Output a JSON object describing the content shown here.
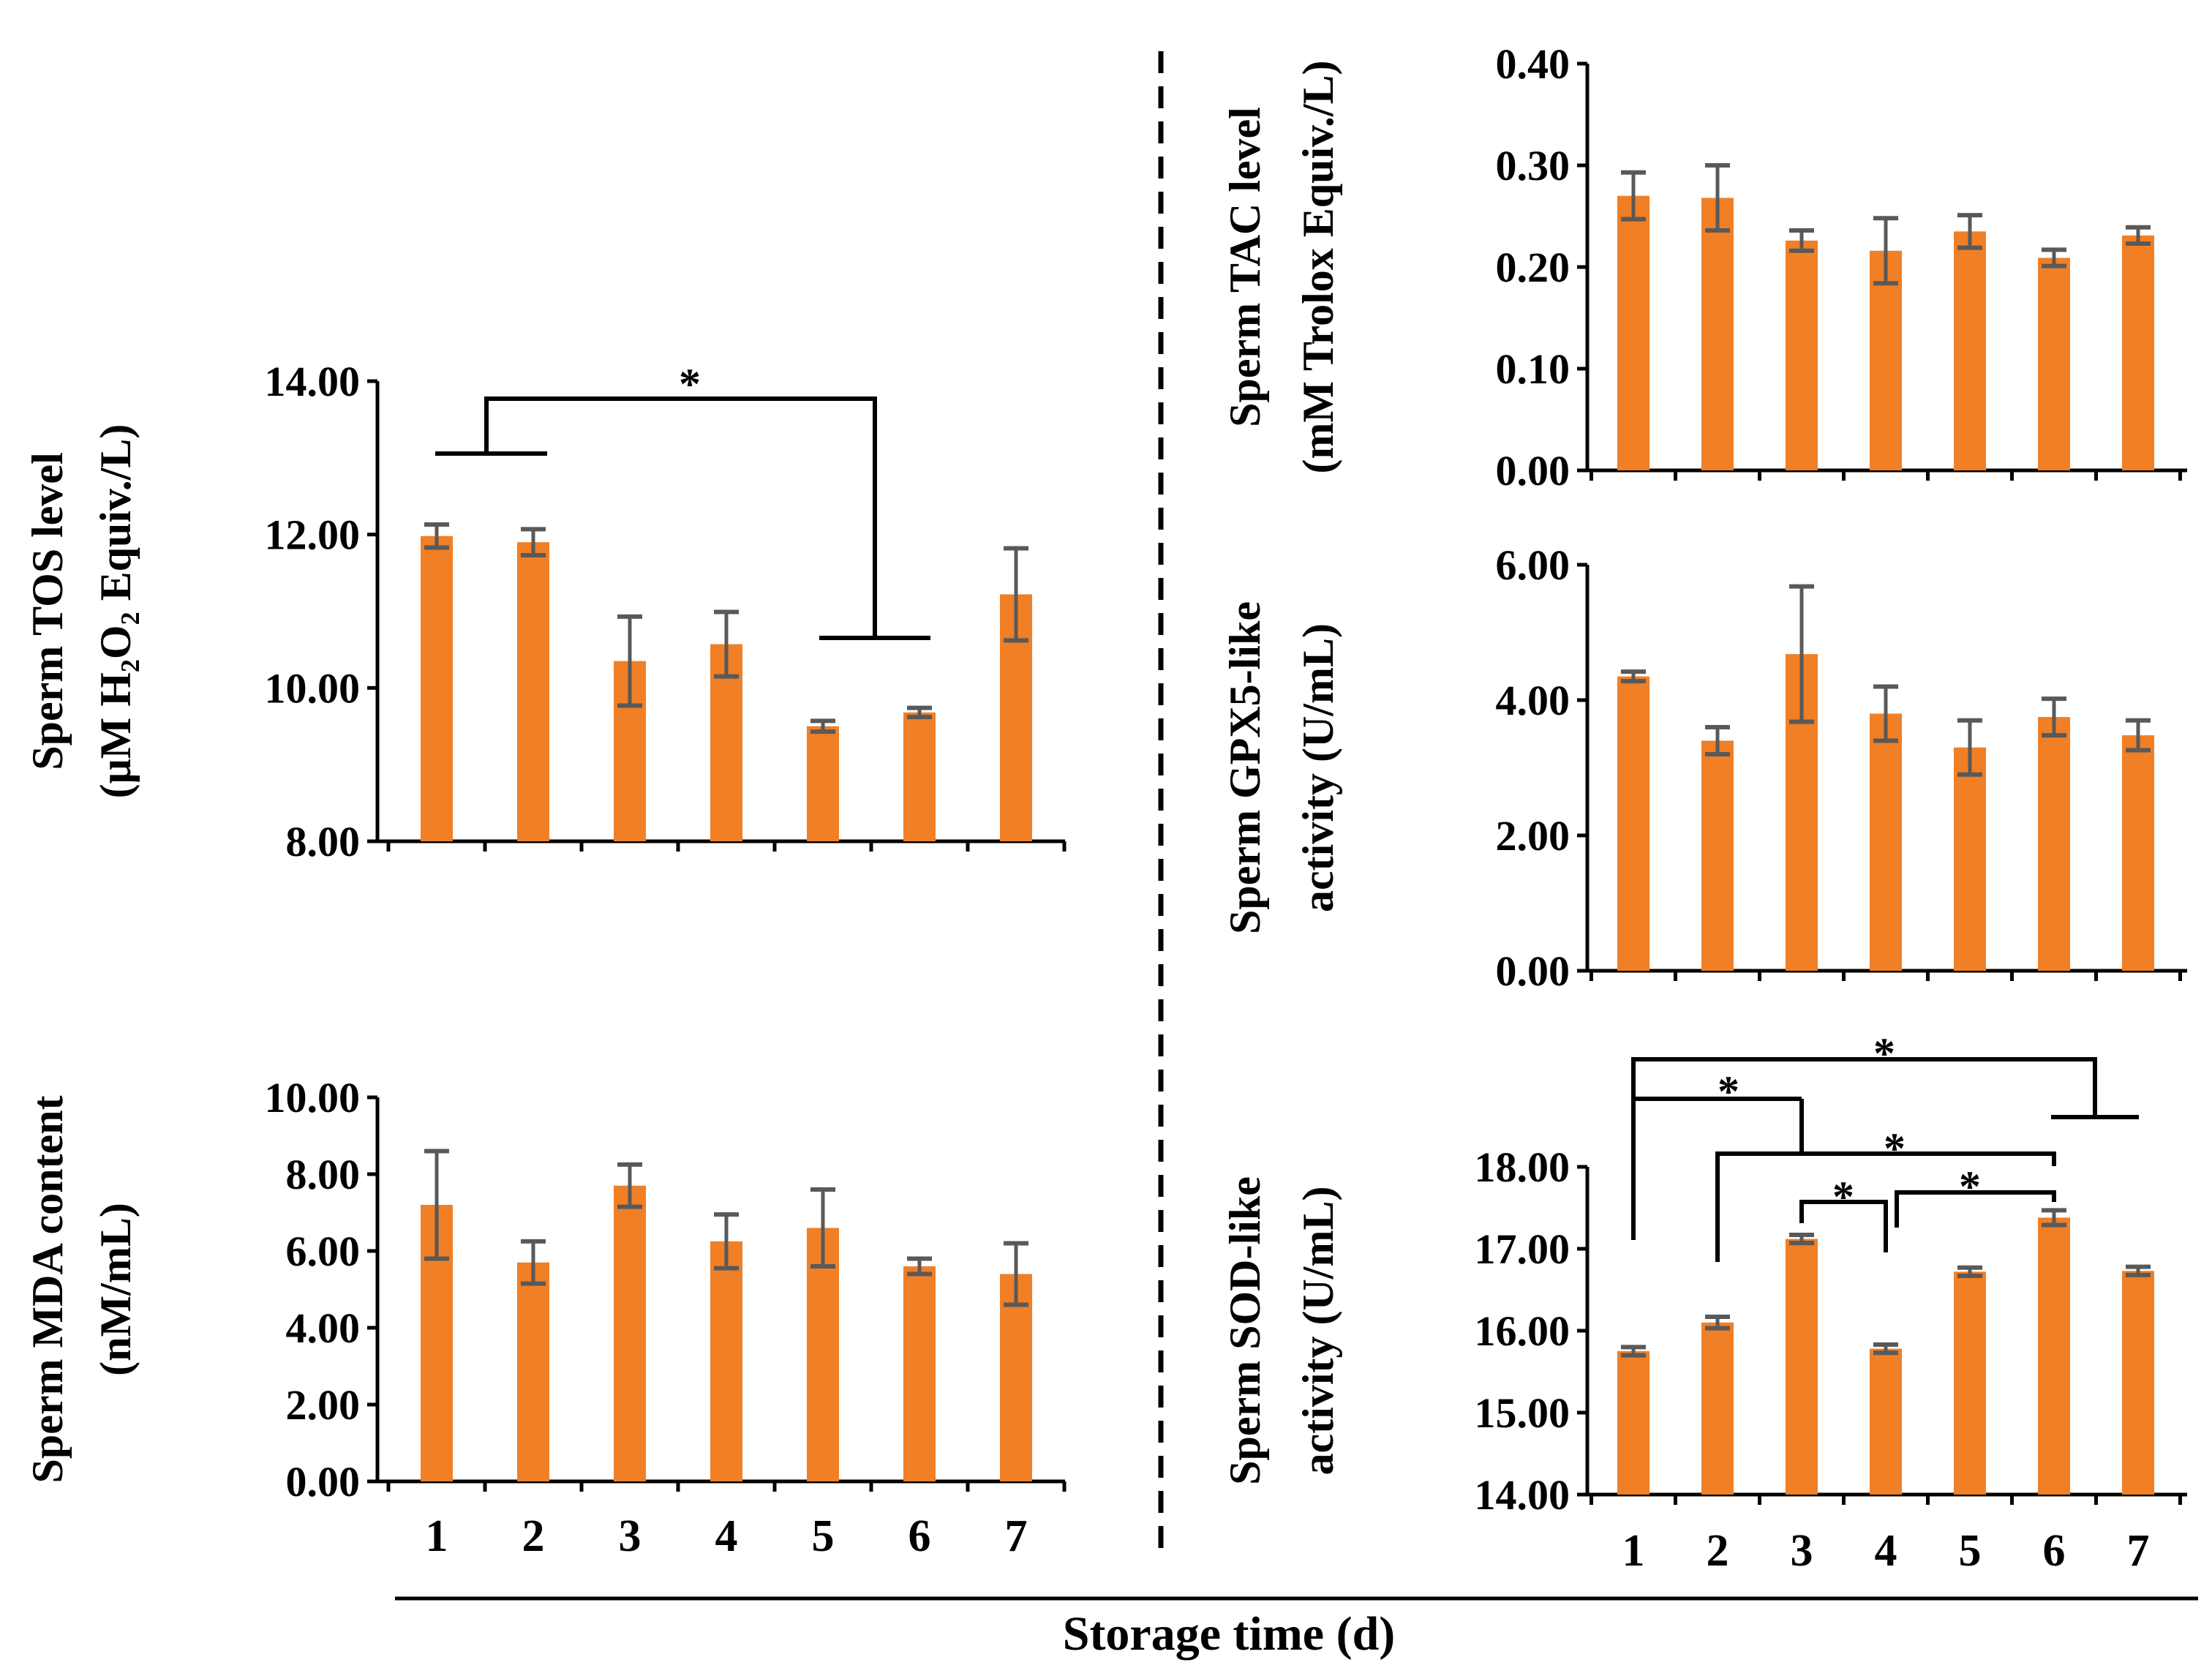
{
  "colors": {
    "bar": "#F07F26",
    "error": "#595959",
    "axis": "#000000"
  },
  "xlabel": "Storage time (d)",
  "chart_data": [
    {
      "id": "tos",
      "type": "bar",
      "ylabel": [
        "Sperm  TOS level",
        "(μM H₂O₂ Equiv./L)"
      ],
      "categories": [
        "1",
        "2",
        "3",
        "4",
        "5",
        "6",
        "7"
      ],
      "values": [
        11.98,
        11.9,
        10.35,
        10.57,
        9.5,
        9.68,
        11.22
      ],
      "errors": [
        0.15,
        0.17,
        0.58,
        0.42,
        0.07,
        0.06,
        0.6
      ],
      "ylim": [
        8,
        14
      ],
      "yticks": [
        "8.00",
        "10.00",
        "12.00",
        "14.00"
      ],
      "annotations": [
        {
          "label": "*",
          "from": [
            1,
            2
          ],
          "to": [
            5,
            6
          ]
        }
      ]
    },
    {
      "id": "mda",
      "type": "bar",
      "ylabel": [
        "Sperm  MDA content",
        "(nM/mL)"
      ],
      "categories": [
        "1",
        "2",
        "3",
        "4",
        "5",
        "6",
        "7"
      ],
      "values": [
        7.2,
        5.7,
        7.7,
        6.25,
        6.6,
        5.6,
        5.4
      ],
      "errors": [
        1.4,
        0.55,
        0.55,
        0.7,
        1.0,
        0.2,
        0.8
      ],
      "ylim": [
        0,
        10
      ],
      "yticks": [
        "0.00",
        "2.00",
        "4.00",
        "6.00",
        "8.00",
        "10.00"
      ],
      "annotations": []
    },
    {
      "id": "tac",
      "type": "bar",
      "ylabel": [
        "Sperm  TAC level",
        "(mM Trolox Equiv./L)"
      ],
      "categories": [
        "1",
        "2",
        "3",
        "4",
        "5",
        "6",
        "7"
      ],
      "values": [
        0.27,
        0.268,
        0.226,
        0.216,
        0.235,
        0.209,
        0.231
      ],
      "errors": [
        0.023,
        0.032,
        0.01,
        0.032,
        0.016,
        0.008,
        0.008
      ],
      "ylim": [
        0,
        0.4
      ],
      "yticks": [
        "0.00",
        "0.10",
        "0.20",
        "0.30",
        "0.40"
      ],
      "annotations": []
    },
    {
      "id": "gpx5",
      "type": "bar",
      "ylabel": [
        "Sperm  GPX5-like",
        "activity (U/mL)"
      ],
      "categories": [
        "1",
        "2",
        "3",
        "4",
        "5",
        "6",
        "7"
      ],
      "values": [
        4.35,
        3.4,
        4.68,
        3.8,
        3.3,
        3.75,
        3.48
      ],
      "errors": [
        0.07,
        0.2,
        1.0,
        0.4,
        0.4,
        0.27,
        0.22
      ],
      "ylim": [
        0,
        6
      ],
      "yticks": [
        "0.00",
        "2.00",
        "4.00",
        "6.00"
      ],
      "annotations": []
    },
    {
      "id": "sod",
      "type": "bar",
      "ylabel": [
        "Sperm  SOD-like",
        "activity (U/mL)"
      ],
      "categories": [
        "1",
        "2",
        "3",
        "4",
        "5",
        "6",
        "7"
      ],
      "values": [
        15.75,
        16.1,
        17.12,
        15.78,
        16.72,
        17.38,
        16.73
      ],
      "errors": [
        0.05,
        0.07,
        0.05,
        0.05,
        0.05,
        0.09,
        0.05
      ],
      "ylim": [
        14,
        18
      ],
      "yticks": [
        "14.00",
        "15.00",
        "16.00",
        "17.00",
        "18.00"
      ],
      "annotations": [
        {
          "label": "*",
          "from": [
            1
          ],
          "to": [
            6,
            7
          ]
        },
        {
          "label": "*",
          "from": [
            1
          ],
          "to": [
            2,
            3
          ]
        },
        {
          "label": "*",
          "from": [
            2,
            3
          ],
          "to": [
            6
          ]
        },
        {
          "label": "*",
          "from": [
            3
          ],
          "to": [
            4
          ]
        },
        {
          "label": "*",
          "from": [
            4
          ],
          "to": [
            6
          ]
        }
      ]
    }
  ]
}
